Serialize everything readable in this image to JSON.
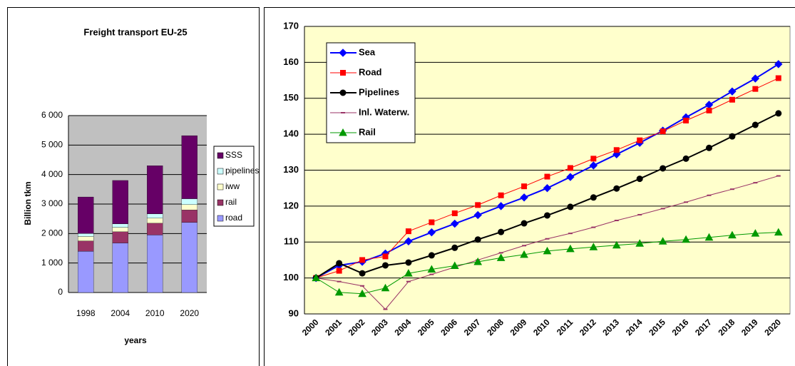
{
  "chart_data": [
    {
      "type": "bar",
      "stacked": true,
      "title": "Freight transport  EU-25",
      "y_label": "Billion tkm",
      "x_label": "years",
      "categories": [
        "1998",
        "2004",
        "2010",
        "2020"
      ],
      "series": [
        {
          "name": "road",
          "color": "#9999ff",
          "values": [
            1400,
            1680,
            1950,
            2380
          ]
        },
        {
          "name": "rail",
          "color": "#993366",
          "values": [
            350,
            380,
            400,
            420
          ]
        },
        {
          "name": "iww",
          "color": "#ffffcc",
          "values": [
            150,
            150,
            170,
            180
          ]
        },
        {
          "name": "pipelines",
          "color": "#ccffff",
          "values": [
            100,
            120,
            150,
            200
          ]
        },
        {
          "name": "SSS",
          "color": "#660066",
          "values": [
            1240,
            1470,
            1630,
            2140
          ]
        }
      ],
      "ylim": [
        0,
        6000
      ],
      "yticks": [
        0,
        {
          "value": 1000,
          "label": "1 000"
        },
        {
          "value": 2000,
          "label": "2 000"
        },
        {
          "value": 3000,
          "label": "3 000"
        },
        {
          "value": 4000,
          "label": "4 000"
        },
        {
          "value": 5000,
          "label": "5 000"
        },
        {
          "value": 6000,
          "label": "6 000"
        }
      ],
      "grid": true,
      "plot_background": "#c0c0c0",
      "legend": "right"
    },
    {
      "type": "line",
      "categories": [
        "2000",
        "2001",
        "2002",
        "2003",
        "2004",
        "2005",
        "2006",
        "2007",
        "2008",
        "2009",
        "2010",
        "2011",
        "2012",
        "2013",
        "2014",
        "2015",
        "2016",
        "2017",
        "2018",
        "2019",
        "2020"
      ],
      "series": [
        {
          "name": "Sea",
          "color": "#0000ff",
          "marker": "diamond",
          "width": 2,
          "values": [
            100,
            103.5,
            104.5,
            106.8,
            110.2,
            112.7,
            115.1,
            117.5,
            120,
            122.4,
            125,
            128.1,
            131.3,
            134.4,
            137.6,
            141,
            144.7,
            148.2,
            151.9,
            155.5,
            159.5
          ]
        },
        {
          "name": "Road",
          "color": "#ff0000",
          "marker": "square",
          "width": 1,
          "values": [
            100,
            102,
            105,
            106,
            113,
            115.5,
            118,
            120.3,
            123,
            125.5,
            128.2,
            130.6,
            133.2,
            135.6,
            138.3,
            140.8,
            143.8,
            146.6,
            149.6,
            152.6,
            155.6
          ]
        },
        {
          "name": "Pipelines",
          "color": "#000000",
          "marker": "circle",
          "width": 2,
          "values": [
            100,
            104.1,
            101.3,
            103.5,
            104.3,
            106.3,
            108.4,
            110.7,
            112.8,
            115.2,
            117.4,
            119.8,
            122.4,
            124.9,
            127.6,
            130.5,
            133.2,
            136.2,
            139.4,
            142.6,
            145.8
          ]
        },
        {
          "name": "Inl. Waterw.",
          "color": "#993366",
          "marker": "dash",
          "width": 1,
          "values": [
            100,
            99,
            97.8,
            91.3,
            99,
            101,
            103,
            105,
            107,
            109,
            110.9,
            112.4,
            114.1,
            116,
            117.6,
            119.3,
            121.1,
            123,
            124.7,
            126.5,
            128.4
          ]
        },
        {
          "name": "Rail",
          "color": "#009900",
          "marker": "triangle",
          "width": 1,
          "values": [
            100,
            96,
            95.6,
            97.2,
            101.3,
            102.4,
            103.4,
            104.5,
            105.6,
            106.5,
            107.5,
            108.1,
            108.6,
            109.1,
            109.6,
            110.2,
            110.7,
            111.3,
            111.9,
            112.4,
            112.7
          ]
        }
      ],
      "ylim": [
        90,
        170
      ],
      "yticks": [
        90,
        100,
        110,
        120,
        130,
        140,
        150,
        160,
        170
      ],
      "grid": true,
      "plot_background": "#ffffcc",
      "legend": "upper left"
    }
  ]
}
